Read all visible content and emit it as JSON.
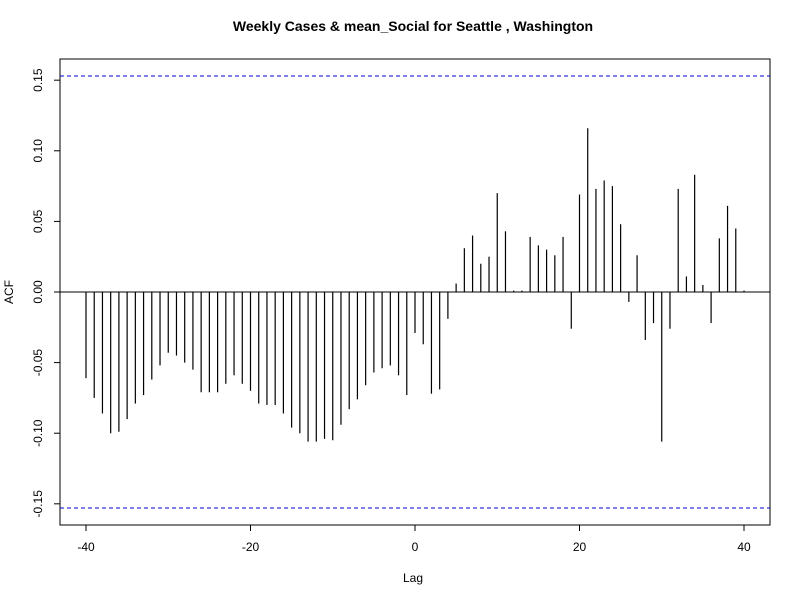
{
  "chart_data": {
    "type": "bar",
    "title": "Weekly Cases & mean_Social for Seattle , Washington",
    "xlabel": "Lag",
    "ylabel": "ACF",
    "xlim": [
      -40,
      40
    ],
    "ylim": [
      -0.165,
      0.165
    ],
    "x_ticks": [
      -40,
      -20,
      0,
      20,
      40
    ],
    "x_tick_labels": [
      "-40",
      "-20",
      "0",
      "20",
      "40"
    ],
    "y_ticks": [
      -0.15,
      -0.1,
      -0.05,
      0.0,
      0.05,
      0.1,
      0.15
    ],
    "y_tick_labels": [
      "-0.15",
      "-0.10",
      "-0.05",
      "0.00",
      "0.05",
      "0.10",
      "0.15"
    ],
    "confidence_band": 0.153,
    "colors": {
      "bars": "#000000",
      "band": "#0000cc",
      "zero_line": "#000000"
    },
    "x": [
      -40,
      -39,
      -38,
      -37,
      -36,
      -35,
      -34,
      -33,
      -32,
      -31,
      -30,
      -29,
      -28,
      -27,
      -26,
      -25,
      -24,
      -23,
      -22,
      -21,
      -20,
      -19,
      -18,
      -17,
      -16,
      -15,
      -14,
      -13,
      -12,
      -11,
      -10,
      -9,
      -8,
      -7,
      -6,
      -5,
      -4,
      -3,
      -2,
      -1,
      0,
      1,
      2,
      3,
      4,
      5,
      6,
      7,
      8,
      9,
      10,
      11,
      12,
      13,
      14,
      15,
      16,
      17,
      18,
      19,
      20,
      21,
      22,
      23,
      24,
      25,
      26,
      27,
      28,
      29,
      30,
      31,
      32,
      33,
      34,
      35,
      36,
      37,
      38,
      39,
      40
    ],
    "values": [
      -0.061,
      -0.075,
      -0.086,
      -0.1,
      -0.099,
      -0.09,
      -0.079,
      -0.073,
      -0.062,
      -0.052,
      -0.043,
      -0.045,
      -0.05,
      -0.055,
      -0.071,
      -0.071,
      -0.071,
      -0.065,
      -0.059,
      -0.065,
      -0.07,
      -0.079,
      -0.08,
      -0.08,
      -0.086,
      -0.096,
      -0.1,
      -0.106,
      -0.106,
      -0.104,
      -0.105,
      -0.094,
      -0.083,
      -0.076,
      -0.066,
      -0.057,
      -0.054,
      -0.052,
      -0.059,
      -0.073,
      -0.029,
      -0.037,
      -0.072,
      -0.069,
      -0.019,
      0.006,
      0.031,
      0.04,
      0.02,
      0.025,
      0.07,
      0.043,
      0.001,
      0.001,
      0.039,
      0.033,
      0.03,
      0.026,
      0.039,
      -0.026,
      0.069,
      0.116,
      0.073,
      0.079,
      0.075,
      0.048,
      -0.007,
      0.026,
      -0.034,
      -0.022,
      -0.106,
      -0.026,
      0.073,
      0.011,
      0.083,
      0.005,
      -0.022,
      0.038,
      0.061,
      0.045,
      0.001
    ]
  }
}
